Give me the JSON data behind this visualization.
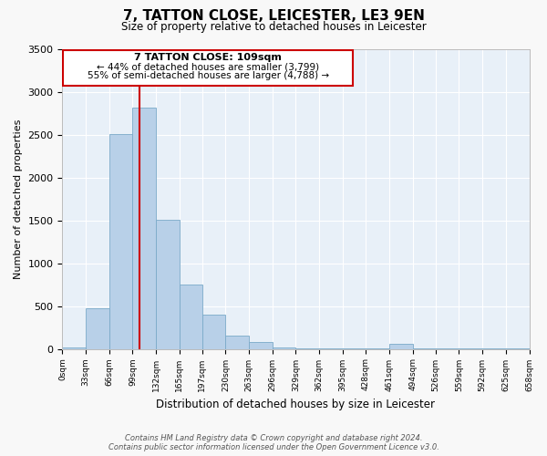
{
  "title": "7, TATTON CLOSE, LEICESTER, LE3 9EN",
  "subtitle": "Size of property relative to detached houses in Leicester",
  "xlabel": "Distribution of detached houses by size in Leicester",
  "ylabel": "Number of detached properties",
  "bar_color": "#b8d0e8",
  "bar_edge_color": "#7aaac8",
  "bg_color": "#e8f0f8",
  "grid_color": "#ffffff",
  "fig_bg_color": "#f8f8f8",
  "vline_value": 109,
  "vline_color": "#cc0000",
  "annotation_title": "7 TATTON CLOSE: 109sqm",
  "annotation_line1": "← 44% of detached houses are smaller (3,799)",
  "annotation_line2": "55% of semi-detached houses are larger (4,788) →",
  "annotation_box_color": "#cc0000",
  "bin_edges": [
    0,
    33,
    66,
    99,
    132,
    165,
    197,
    230,
    263,
    296,
    329,
    362,
    395,
    428,
    461,
    494,
    526,
    559,
    592,
    625,
    658
  ],
  "bar_heights": [
    20,
    480,
    2510,
    2820,
    1510,
    750,
    400,
    155,
    80,
    20,
    5,
    5,
    2,
    2,
    60,
    2,
    2,
    2,
    2,
    2
  ],
  "ylim": [
    0,
    3500
  ],
  "yticks": [
    0,
    500,
    1000,
    1500,
    2000,
    2500,
    3000,
    3500
  ],
  "footer_line1": "Contains HM Land Registry data © Crown copyright and database right 2024.",
  "footer_line2": "Contains public sector information licensed under the Open Government Licence v3.0."
}
